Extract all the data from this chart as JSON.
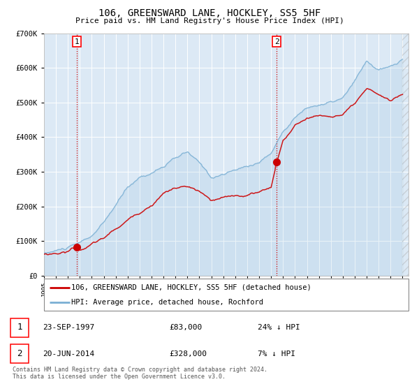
{
  "title": "106, GREENSWARD LANE, HOCKLEY, SS5 5HF",
  "subtitle": "Price paid vs. HM Land Registry's House Price Index (HPI)",
  "legend_line1": "106, GREENSWARD LANE, HOCKLEY, SS5 5HF (detached house)",
  "legend_line2": "HPI: Average price, detached house, Rochford",
  "transaction1_label": "1",
  "transaction1_date": "23-SEP-1997",
  "transaction1_price": "£83,000",
  "transaction1_hpi": "24% ↓ HPI",
  "transaction2_label": "2",
  "transaction2_date": "20-JUN-2014",
  "transaction2_price": "£328,000",
  "transaction2_hpi": "7% ↓ HPI",
  "footer": "Contains HM Land Registry data © Crown copyright and database right 2024.\nThis data is licensed under the Open Government Licence v3.0.",
  "bg_color": "#dce9f5",
  "red_color": "#cc0000",
  "blue_color": "#7aafd4",
  "vline_color": "#cc0000",
  "ylim": [
    0,
    700000
  ],
  "yticks": [
    0,
    100000,
    200000,
    300000,
    400000,
    500000,
    600000,
    700000
  ],
  "ytick_labels": [
    "£0",
    "£100K",
    "£200K",
    "£300K",
    "£400K",
    "£500K",
    "£600K",
    "£700K"
  ],
  "transaction1_x": 1997.73,
  "transaction1_y": 83000,
  "transaction2_x": 2014.47,
  "transaction2_y": 328000,
  "xmin": 1995.0,
  "xmax": 2025.5,
  "xticks": [
    1995,
    1996,
    1997,
    1998,
    1999,
    2000,
    2001,
    2002,
    2003,
    2004,
    2005,
    2006,
    2007,
    2008,
    2009,
    2010,
    2011,
    2012,
    2013,
    2014,
    2015,
    2016,
    2017,
    2018,
    2019,
    2020,
    2021,
    2022,
    2023,
    2024,
    2025
  ],
  "hpi_anchors_x": [
    0,
    12,
    24,
    36,
    48,
    60,
    72,
    84,
    96,
    108,
    120,
    132,
    144,
    156,
    168,
    180,
    192,
    204,
    216,
    228,
    240,
    252,
    264,
    276,
    288,
    300,
    312,
    324,
    336,
    348,
    360
  ],
  "hpi_anchors_y": [
    65000,
    72000,
    80000,
    90000,
    110000,
    145000,
    195000,
    245000,
    275000,
    290000,
    310000,
    330000,
    345000,
    310000,
    270000,
    280000,
    290000,
    300000,
    315000,
    340000,
    405000,
    450000,
    475000,
    485000,
    490000,
    500000,
    545000,
    600000,
    575000,
    580000,
    600000
  ],
  "red_anchors_x": [
    0,
    12,
    24,
    29,
    36,
    60,
    84,
    108,
    120,
    132,
    144,
    156,
    168,
    180,
    192,
    204,
    216,
    228,
    234,
    240,
    252,
    264,
    276,
    288,
    300,
    312,
    324,
    336,
    348,
    360
  ],
  "red_anchors_y": [
    62000,
    66000,
    72000,
    83000,
    78000,
    110000,
    160000,
    210000,
    245000,
    260000,
    262000,
    245000,
    215000,
    220000,
    225000,
    228000,
    238000,
    253000,
    328000,
    390000,
    430000,
    455000,
    462000,
    460000,
    465000,
    490000,
    525000,
    510000,
    490000,
    510000
  ]
}
